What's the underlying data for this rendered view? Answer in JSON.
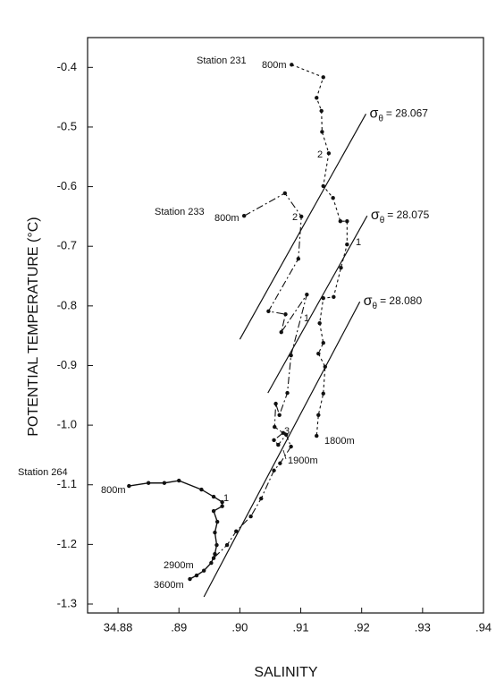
{
  "chart_data": {
    "type": "line",
    "xlabel": "SALINITY",
    "ylabel": "POTENTIAL TEMPERATURE (°C)",
    "xlim": [
      34.875,
      34.94
    ],
    "ylim": [
      -1.315,
      -0.35
    ],
    "xticks": [
      {
        "value": 34.88,
        "label": "34.88"
      },
      {
        "value": 34.89,
        "label": ".89"
      },
      {
        "value": 34.9,
        "label": ".90"
      },
      {
        "value": 34.91,
        "label": ".91"
      },
      {
        "value": 34.92,
        "label": ".92"
      },
      {
        "value": 34.93,
        "label": ".93"
      },
      {
        "value": 34.94,
        "label": ".94"
      }
    ],
    "yticks": [
      -0.4,
      -0.5,
      -0.6,
      -0.7,
      -0.8,
      -0.9,
      {
        "value": -1.0,
        "label": "-1.0"
      },
      -1.1,
      -1.2,
      -1.3
    ],
    "series": [
      {
        "name": "Station 231",
        "color": "#111111",
        "linestyle": "dashed",
        "x": [
          34.9085,
          34.9137,
          34.9126,
          34.9134,
          34.9135,
          34.9146,
          34.9137,
          34.9153,
          34.9165,
          34.9176,
          34.9176,
          34.9166,
          34.9154,
          34.9137,
          34.9131,
          34.9137,
          34.9129,
          34.914,
          34.9137,
          34.9129,
          34.9126
        ],
        "y": [
          -0.3955,
          -0.4165,
          -0.451,
          -0.473,
          -0.508,
          -0.544,
          -0.599,
          -0.619,
          -0.658,
          -0.658,
          -0.697,
          -0.736,
          -0.785,
          -0.787,
          -0.829,
          -0.862,
          -0.88,
          -0.902,
          -0.947,
          -0.983,
          -1.018
        ]
      },
      {
        "name": "Station 233",
        "color": "#111111",
        "linestyle": "dashdot",
        "x": [
          34.9007,
          34.9074,
          34.9101,
          34.9096,
          34.9047,
          34.9075,
          34.9068,
          34.911,
          34.9084,
          34.9078,
          34.9065,
          34.9059,
          34.9057,
          34.9071,
          34.9056,
          34.9063,
          34.9076,
          34.9084,
          34.9066,
          34.9056,
          34.9035,
          34.9018,
          34.8994,
          34.8979,
          34.8957
        ],
        "y": [
          -0.649,
          -0.611,
          -0.65,
          -0.721,
          -0.809,
          -0.814,
          -0.844,
          -0.781,
          -0.883,
          -0.946,
          -0.983,
          -0.964,
          -1.003,
          -1.013,
          -1.025,
          -1.033,
          -1.016,
          -1.036,
          -1.064,
          -1.076,
          -1.123,
          -1.153,
          -1.178,
          -1.201,
          -1.223
        ]
      },
      {
        "name": "Station 264",
        "color": "#111111",
        "linestyle": "solid",
        "x": [
          34.8818,
          34.885,
          34.8876,
          34.89,
          34.8937,
          34.8957,
          34.8971,
          34.8971,
          34.8957,
          34.8963,
          34.8959,
          34.8962,
          34.8959,
          34.8953,
          34.8941,
          34.8929,
          34.8918
        ],
        "y": [
          -1.102,
          -1.097,
          -1.097,
          -1.093,
          -1.108,
          -1.12,
          -1.129,
          -1.136,
          -1.144,
          -1.162,
          -1.18,
          -1.201,
          -1.216,
          -1.231,
          -1.244,
          -1.252,
          -1.258
        ]
      }
    ],
    "isopycnals": [
      {
        "symbol": "σ",
        "subscript": "θ",
        "label": "= 28.067",
        "color": "#111111",
        "x": [
          34.9,
          34.9207
        ],
        "y": [
          -0.856,
          -0.478
        ]
      },
      {
        "symbol": "σ",
        "subscript": "θ",
        "label": "= 28.075",
        "color": "#111111",
        "x": [
          34.9046,
          34.9209
        ],
        "y": [
          -0.946,
          -0.649
        ]
      },
      {
        "symbol": "σ",
        "subscript": "θ",
        "label": "= 28.080",
        "color": "#111111",
        "x": [
          34.8941,
          34.9197
        ],
        "y": [
          -1.288,
          -0.793
        ]
      }
    ],
    "annotations": [
      "800m",
      "800m",
      "800m",
      "1800m",
      "1900m",
      "2900m",
      "3600m",
      "2",
      "2",
      "1",
      "1",
      "3",
      "1"
    ]
  }
}
